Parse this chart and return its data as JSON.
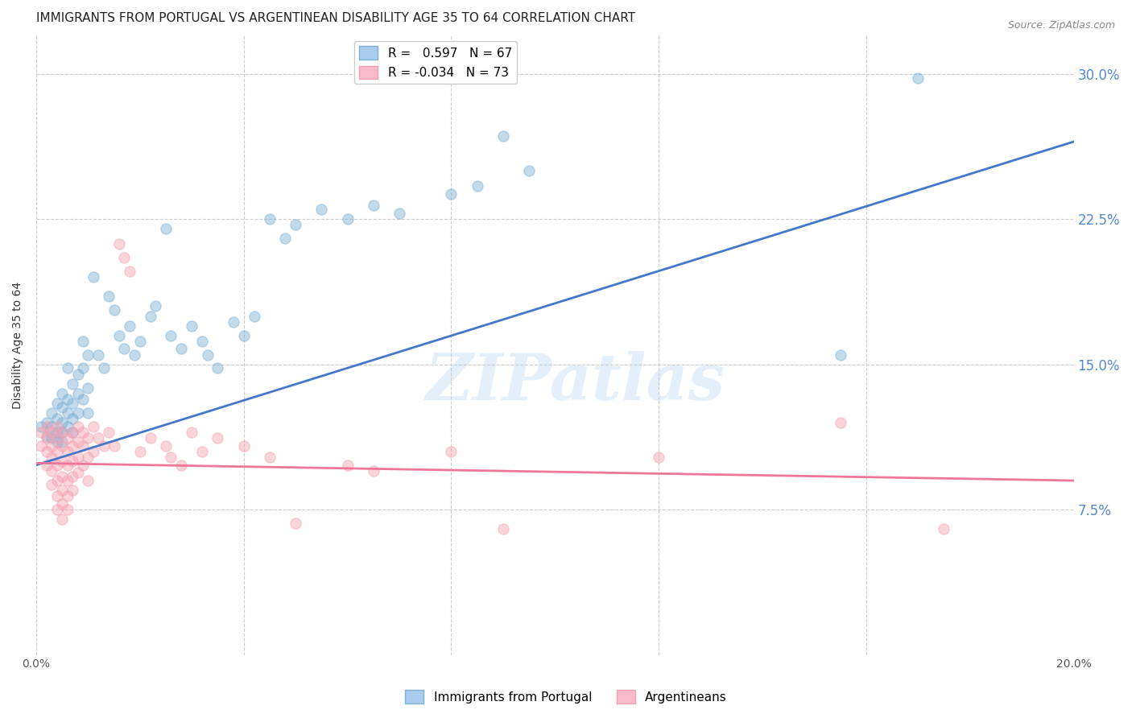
{
  "title": "IMMIGRANTS FROM PORTUGAL VS ARGENTINEAN DISABILITY AGE 35 TO 64 CORRELATION CHART",
  "source": "Source: ZipAtlas.com",
  "ylabel": "Disability Age 35 to 64",
  "x_min": 0.0,
  "x_max": 0.2,
  "y_min": 0.0,
  "y_max": 0.32,
  "x_ticks": [
    0.0,
    0.04,
    0.08,
    0.12,
    0.16,
    0.2
  ],
  "x_tick_labels": [
    "0.0%",
    "",
    "",
    "",
    "",
    "20.0%"
  ],
  "y_ticks": [
    0.075,
    0.15,
    0.225,
    0.3
  ],
  "y_tick_labels": [
    "7.5%",
    "15.0%",
    "22.5%",
    "30.0%"
  ],
  "watermark": "ZIPatlas",
  "legend_r1": "R =   0.597   N = 67",
  "legend_r2": "R = -0.034   N = 73",
  "blue_color": "#7BAFD4",
  "pink_color": "#F4A0B0",
  "blue_line_color": "#4477CC",
  "pink_line_color": "#EE7799",
  "blue_scatter": [
    [
      0.001,
      0.118
    ],
    [
      0.002,
      0.12
    ],
    [
      0.002,
      0.113
    ],
    [
      0.003,
      0.125
    ],
    [
      0.003,
      0.118
    ],
    [
      0.003,
      0.112
    ],
    [
      0.004,
      0.13
    ],
    [
      0.004,
      0.122
    ],
    [
      0.004,
      0.115
    ],
    [
      0.004,
      0.11
    ],
    [
      0.005,
      0.135
    ],
    [
      0.005,
      0.128
    ],
    [
      0.005,
      0.12
    ],
    [
      0.005,
      0.115
    ],
    [
      0.005,
      0.11
    ],
    [
      0.006,
      0.148
    ],
    [
      0.006,
      0.132
    ],
    [
      0.006,
      0.125
    ],
    [
      0.006,
      0.118
    ],
    [
      0.007,
      0.14
    ],
    [
      0.007,
      0.13
    ],
    [
      0.007,
      0.122
    ],
    [
      0.007,
      0.115
    ],
    [
      0.008,
      0.145
    ],
    [
      0.008,
      0.135
    ],
    [
      0.008,
      0.125
    ],
    [
      0.009,
      0.162
    ],
    [
      0.009,
      0.148
    ],
    [
      0.009,
      0.132
    ],
    [
      0.01,
      0.155
    ],
    [
      0.01,
      0.138
    ],
    [
      0.01,
      0.125
    ],
    [
      0.011,
      0.195
    ],
    [
      0.012,
      0.155
    ],
    [
      0.013,
      0.148
    ],
    [
      0.014,
      0.185
    ],
    [
      0.015,
      0.178
    ],
    [
      0.016,
      0.165
    ],
    [
      0.017,
      0.158
    ],
    [
      0.018,
      0.17
    ],
    [
      0.019,
      0.155
    ],
    [
      0.02,
      0.162
    ],
    [
      0.022,
      0.175
    ],
    [
      0.023,
      0.18
    ],
    [
      0.025,
      0.22
    ],
    [
      0.026,
      0.165
    ],
    [
      0.028,
      0.158
    ],
    [
      0.03,
      0.17
    ],
    [
      0.032,
      0.162
    ],
    [
      0.033,
      0.155
    ],
    [
      0.035,
      0.148
    ],
    [
      0.038,
      0.172
    ],
    [
      0.04,
      0.165
    ],
    [
      0.042,
      0.175
    ],
    [
      0.045,
      0.225
    ],
    [
      0.048,
      0.215
    ],
    [
      0.05,
      0.222
    ],
    [
      0.055,
      0.23
    ],
    [
      0.06,
      0.225
    ],
    [
      0.065,
      0.232
    ],
    [
      0.07,
      0.228
    ],
    [
      0.08,
      0.238
    ],
    [
      0.085,
      0.242
    ],
    [
      0.09,
      0.268
    ],
    [
      0.095,
      0.25
    ],
    [
      0.155,
      0.155
    ],
    [
      0.17,
      0.298
    ]
  ],
  "pink_scatter": [
    [
      0.001,
      0.115
    ],
    [
      0.001,
      0.108
    ],
    [
      0.002,
      0.118
    ],
    [
      0.002,
      0.112
    ],
    [
      0.002,
      0.105
    ],
    [
      0.002,
      0.098
    ],
    [
      0.003,
      0.115
    ],
    [
      0.003,
      0.108
    ],
    [
      0.003,
      0.102
    ],
    [
      0.003,
      0.095
    ],
    [
      0.003,
      0.088
    ],
    [
      0.004,
      0.118
    ],
    [
      0.004,
      0.112
    ],
    [
      0.004,
      0.105
    ],
    [
      0.004,
      0.098
    ],
    [
      0.004,
      0.09
    ],
    [
      0.004,
      0.082
    ],
    [
      0.004,
      0.075
    ],
    [
      0.005,
      0.115
    ],
    [
      0.005,
      0.108
    ],
    [
      0.005,
      0.1
    ],
    [
      0.005,
      0.092
    ],
    [
      0.005,
      0.085
    ],
    [
      0.005,
      0.078
    ],
    [
      0.005,
      0.07
    ],
    [
      0.006,
      0.112
    ],
    [
      0.006,
      0.105
    ],
    [
      0.006,
      0.098
    ],
    [
      0.006,
      0.09
    ],
    [
      0.006,
      0.082
    ],
    [
      0.006,
      0.075
    ],
    [
      0.007,
      0.115
    ],
    [
      0.007,
      0.108
    ],
    [
      0.007,
      0.1
    ],
    [
      0.007,
      0.092
    ],
    [
      0.007,
      0.085
    ],
    [
      0.008,
      0.118
    ],
    [
      0.008,
      0.11
    ],
    [
      0.008,
      0.102
    ],
    [
      0.008,
      0.094
    ],
    [
      0.009,
      0.115
    ],
    [
      0.009,
      0.108
    ],
    [
      0.009,
      0.098
    ],
    [
      0.01,
      0.112
    ],
    [
      0.01,
      0.102
    ],
    [
      0.01,
      0.09
    ],
    [
      0.011,
      0.118
    ],
    [
      0.011,
      0.105
    ],
    [
      0.012,
      0.112
    ],
    [
      0.013,
      0.108
    ],
    [
      0.014,
      0.115
    ],
    [
      0.015,
      0.108
    ],
    [
      0.016,
      0.212
    ],
    [
      0.017,
      0.205
    ],
    [
      0.018,
      0.198
    ],
    [
      0.02,
      0.105
    ],
    [
      0.022,
      0.112
    ],
    [
      0.025,
      0.108
    ],
    [
      0.026,
      0.102
    ],
    [
      0.028,
      0.098
    ],
    [
      0.03,
      0.115
    ],
    [
      0.032,
      0.105
    ],
    [
      0.035,
      0.112
    ],
    [
      0.04,
      0.108
    ],
    [
      0.045,
      0.102
    ],
    [
      0.05,
      0.068
    ],
    [
      0.06,
      0.098
    ],
    [
      0.065,
      0.095
    ],
    [
      0.08,
      0.105
    ],
    [
      0.09,
      0.065
    ],
    [
      0.12,
      0.102
    ],
    [
      0.155,
      0.12
    ],
    [
      0.175,
      0.065
    ]
  ],
  "blue_line": {
    "x0": 0.0,
    "y0": 0.098,
    "x1": 0.2,
    "y1": 0.265
  },
  "pink_line": {
    "x0": 0.0,
    "y0": 0.099,
    "x1": 0.2,
    "y1": 0.09
  },
  "title_fontsize": 11,
  "axis_label_fontsize": 10,
  "tick_fontsize": 10,
  "legend_fontsize": 11,
  "source_fontsize": 9,
  "marker_size": 90,
  "background_color": "#FFFFFF",
  "grid_color": "#CCCCCC",
  "right_yaxis_color": "#5588CC"
}
